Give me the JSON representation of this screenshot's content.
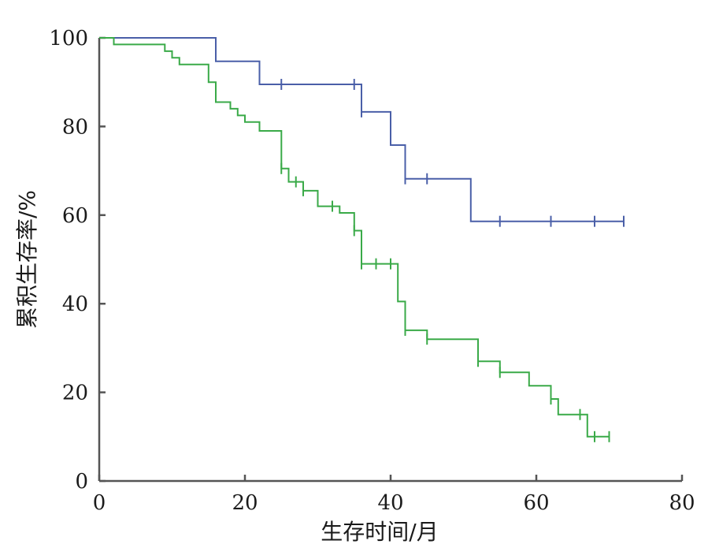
{
  "chart_data": {
    "type": "line",
    "title": "",
    "xlabel": "生存时间/月",
    "ylabel": "累积生存率/%",
    "xlim": [
      0,
      80
    ],
    "ylim": [
      0,
      100
    ],
    "xticks": [
      "0",
      "20",
      "40",
      "60",
      "80"
    ],
    "yticks": [
      "0",
      "20",
      "40",
      "60",
      "80",
      "100"
    ],
    "grid": false,
    "legend": "none",
    "series": [
      {
        "color": "#4a5fa8",
        "step_points": [
          [
            0,
            100
          ],
          [
            16,
            100
          ],
          [
            16,
            94.7
          ],
          [
            22,
            94.7
          ],
          [
            22,
            89.5
          ],
          [
            36,
            89.5
          ],
          [
            36,
            83.3
          ],
          [
            40,
            83.3
          ],
          [
            40,
            75.8
          ],
          [
            42,
            75.8
          ],
          [
            42,
            68.2
          ],
          [
            51,
            68.2
          ],
          [
            51,
            58.6
          ],
          [
            72,
            58.6
          ]
        ],
        "censored": [
          [
            25,
            89.5
          ],
          [
            35,
            89.5
          ],
          [
            36,
            83.3
          ],
          [
            42,
            68.2
          ],
          [
            45,
            68.2
          ],
          [
            55,
            58.6
          ],
          [
            62,
            58.6
          ],
          [
            68,
            58.6
          ],
          [
            72,
            58.6
          ]
        ]
      },
      {
        "color": "#3aaa48",
        "step_points": [
          [
            0,
            100
          ],
          [
            2,
            100
          ],
          [
            2,
            98.5
          ],
          [
            9,
            98.5
          ],
          [
            9,
            97
          ],
          [
            10,
            97
          ],
          [
            10,
            95.5
          ],
          [
            11,
            95.5
          ],
          [
            11,
            94
          ],
          [
            15,
            94
          ],
          [
            15,
            90
          ],
          [
            16,
            90
          ],
          [
            16,
            85.5
          ],
          [
            18,
            85.5
          ],
          [
            18,
            84
          ],
          [
            19,
            84
          ],
          [
            19,
            82.5
          ],
          [
            20,
            82.5
          ],
          [
            20,
            81
          ],
          [
            22,
            81
          ],
          [
            22,
            79
          ],
          [
            25,
            79
          ],
          [
            25,
            70.5
          ],
          [
            26,
            70.5
          ],
          [
            26,
            67.5
          ],
          [
            28,
            67.5
          ],
          [
            28,
            65.5
          ],
          [
            30,
            65.5
          ],
          [
            30,
            62
          ],
          [
            33,
            62
          ],
          [
            33,
            60.5
          ],
          [
            35,
            60.5
          ],
          [
            35,
            56.5
          ],
          [
            36,
            56.5
          ],
          [
            36,
            49
          ],
          [
            41,
            49
          ],
          [
            41,
            40.5
          ],
          [
            42,
            40.5
          ],
          [
            42,
            34
          ],
          [
            45,
            34
          ],
          [
            45,
            32
          ],
          [
            52,
            32
          ],
          [
            52,
            27
          ],
          [
            55,
            27
          ],
          [
            55,
            24.5
          ],
          [
            59,
            24.5
          ],
          [
            59,
            21.5
          ],
          [
            62,
            21.5
          ],
          [
            62,
            18.5
          ],
          [
            63,
            18.5
          ],
          [
            63,
            15
          ],
          [
            67,
            15
          ],
          [
            67,
            10
          ],
          [
            70,
            10
          ]
        ],
        "censored": [
          [
            25,
            70.5
          ],
          [
            27,
            67.5
          ],
          [
            28,
            65.5
          ],
          [
            32,
            62
          ],
          [
            35,
            56.5
          ],
          [
            36,
            49
          ],
          [
            38,
            49
          ],
          [
            40,
            49
          ],
          [
            42,
            34
          ],
          [
            45,
            32
          ],
          [
            52,
            27
          ],
          [
            55,
            24.5
          ],
          [
            62,
            18.5
          ],
          [
            66,
            15
          ],
          [
            68,
            10
          ],
          [
            70,
            10
          ]
        ]
      }
    ]
  }
}
